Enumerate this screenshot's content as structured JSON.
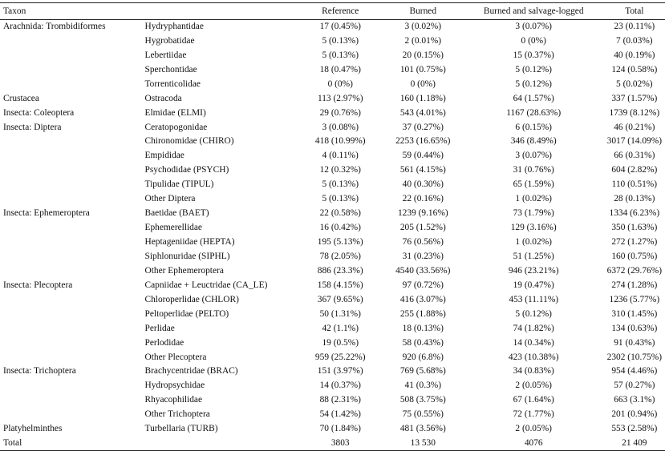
{
  "headers": {
    "taxon": "Taxon",
    "family": "",
    "reference": "Reference",
    "burned": "Burned",
    "salvage": "Burned and salvage-logged",
    "total": "Total"
  },
  "rows": [
    {
      "taxon": "Arachnida: Trombidiformes",
      "family": "Hydryphantidae",
      "reference": "17 (0.45%)",
      "burned": "3 (0.02%)",
      "salvage": "3 (0.07%)",
      "total": "23 (0.11%)"
    },
    {
      "taxon": "",
      "family": "Hygrobatidae",
      "reference": "5 (0.13%)",
      "burned": "2 (0.01%)",
      "salvage": "0 (0%)",
      "total": "7 (0.03%)"
    },
    {
      "taxon": "",
      "family": "Lebertiidae",
      "reference": "5 (0.13%)",
      "burned": "20 (0.15%)",
      "salvage": "15 (0.37%)",
      "total": "40 (0.19%)"
    },
    {
      "taxon": "",
      "family": "Sperchontidae",
      "reference": "18 (0.47%)",
      "burned": "101 (0.75%)",
      "salvage": "5 (0.12%)",
      "total": "124 (0.58%)"
    },
    {
      "taxon": "",
      "family": "Torrenticolidae",
      "reference": "0 (0%)",
      "burned": "0 (0%)",
      "salvage": "5 (0.12%)",
      "total": "5 (0.02%)"
    },
    {
      "taxon": "Crustacea",
      "family": "Ostracoda",
      "reference": "113 (2.97%)",
      "burned": "160 (1.18%)",
      "salvage": "64 (1.57%)",
      "total": "337 (1.57%)"
    },
    {
      "taxon": "Insecta: Coleoptera",
      "family": "Elmidae (ELMI)",
      "reference": "29 (0.76%)",
      "burned": "543 (4.01%)",
      "salvage": "1167 (28.63%)",
      "total": "1739 (8.12%)"
    },
    {
      "taxon": "Insecta: Diptera",
      "family": "Ceratopogonidae",
      "reference": "3 (0.08%)",
      "burned": "37 (0.27%)",
      "salvage": "6 (0.15%)",
      "total": "46 (0.21%)"
    },
    {
      "taxon": "",
      "family": "Chironomidae (CHIRO)",
      "reference": "418 (10.99%)",
      "burned": "2253 (16.65%)",
      "salvage": "346 (8.49%)",
      "total": "3017 (14.09%)"
    },
    {
      "taxon": "",
      "family": "Empididae",
      "reference": "4 (0.11%)",
      "burned": "59 (0.44%)",
      "salvage": "3 (0.07%)",
      "total": "66 (0.31%)"
    },
    {
      "taxon": "",
      "family": "Psychodidae (PSYCH)",
      "reference": "12 (0.32%)",
      "burned": "561 (4.15%)",
      "salvage": "31 (0.76%)",
      "total": "604 (2.82%)"
    },
    {
      "taxon": "",
      "family": "Tipulidae (TIPUL)",
      "reference": "5 (0.13%)",
      "burned": "40 (0.30%)",
      "salvage": "65 (1.59%)",
      "total": "110 (0.51%)"
    },
    {
      "taxon": "",
      "family": "Other Diptera",
      "reference": "5 (0.13%)",
      "burned": "22 (0.16%)",
      "salvage": "1 (0.02%)",
      "total": "28 (0.13%)"
    },
    {
      "taxon": "Insecta: Ephemeroptera",
      "family": "Baetidae (BAET)",
      "reference": "22 (0.58%)",
      "burned": "1239 (9.16%)",
      "salvage": "73 (1.79%)",
      "total": "1334 (6.23%)"
    },
    {
      "taxon": "",
      "family": "Ephemerellidae",
      "reference": "16 (0.42%)",
      "burned": "205 (1.52%)",
      "salvage": "129 (3.16%)",
      "total": "350 (1.63%)"
    },
    {
      "taxon": "",
      "family": "Heptageniidae (HEPTA)",
      "reference": "195 (5.13%)",
      "burned": "76 (0.56%)",
      "salvage": "1 (0.02%)",
      "total": "272 (1.27%)"
    },
    {
      "taxon": "",
      "family": "Siphlonuridae (SIPHL)",
      "reference": "78 (2.05%)",
      "burned": "31 (0.23%)",
      "salvage": "51 (1.25%)",
      "total": "160 (0.75%)"
    },
    {
      "taxon": "",
      "family": "Other Ephemeroptera",
      "reference": "886 (23.3%)",
      "burned": "4540 (33.56%)",
      "salvage": "946 (23.21%)",
      "total": "6372 (29.76%)"
    },
    {
      "taxon": "Insecta: Plecoptera",
      "family": "Capniidae + Leuctridae (CA_LE)",
      "reference": "158 (4.15%)",
      "burned": "97 (0.72%)",
      "salvage": "19 (0.47%)",
      "total": "274 (1.28%)"
    },
    {
      "taxon": "",
      "family": "Chloroperlidae (CHLOR)",
      "reference": "367 (9.65%)",
      "burned": "416 (3.07%)",
      "salvage": "453 (11.11%)",
      "total": "1236 (5.77%)"
    },
    {
      "taxon": "",
      "family": "Peltoperlidae (PELTO)",
      "reference": "50 (1.31%)",
      "burned": "255 (1.88%)",
      "salvage": "5 (0.12%)",
      "total": "310 (1.45%)"
    },
    {
      "taxon": "",
      "family": "Perlidae",
      "reference": "42 (1.1%)",
      "burned": "18 (0.13%)",
      "salvage": "74 (1.82%)",
      "total": "134 (0.63%)"
    },
    {
      "taxon": "",
      "family": "Perlodidae",
      "reference": "19 (0.5%)",
      "burned": "58 (0.43%)",
      "salvage": "14 (0.34%)",
      "total": "91 (0.43%)"
    },
    {
      "taxon": "",
      "family": "Other Plecoptera",
      "reference": "959 (25.22%)",
      "burned": "920 (6.8%)",
      "salvage": "423 (10.38%)",
      "total": "2302 (10.75%)"
    },
    {
      "taxon": "Insecta: Trichoptera",
      "family": "Brachycentridae (BRAC)",
      "reference": "151 (3.97%)",
      "burned": "769 (5.68%)",
      "salvage": "34 (0.83%)",
      "total": "954 (4.46%)"
    },
    {
      "taxon": "",
      "family": "Hydropsychidae",
      "reference": "14 (0.37%)",
      "burned": "41 (0.3%)",
      "salvage": "2 (0.05%)",
      "total": "57 (0.27%)"
    },
    {
      "taxon": "",
      "family": "Rhyacophilidae",
      "reference": "88 (2.31%)",
      "burned": "508 (3.75%)",
      "salvage": "67 (1.64%)",
      "total": "663 (3.1%)"
    },
    {
      "taxon": "",
      "family": "Other Trichoptera",
      "reference": "54 (1.42%)",
      "burned": "75 (0.55%)",
      "salvage": "72 (1.77%)",
      "total": "201 (0.94%)"
    },
    {
      "taxon": "Platyhelminthes",
      "family": "Turbellaria (TURB)",
      "reference": "70 (1.84%)",
      "burned": "481 (3.56%)",
      "salvage": "2 (0.05%)",
      "total": "553 (2.58%)"
    },
    {
      "taxon": "Total",
      "family": "",
      "reference": "3803",
      "burned": "13 530",
      "salvage": "4076",
      "total": "21 409"
    }
  ]
}
